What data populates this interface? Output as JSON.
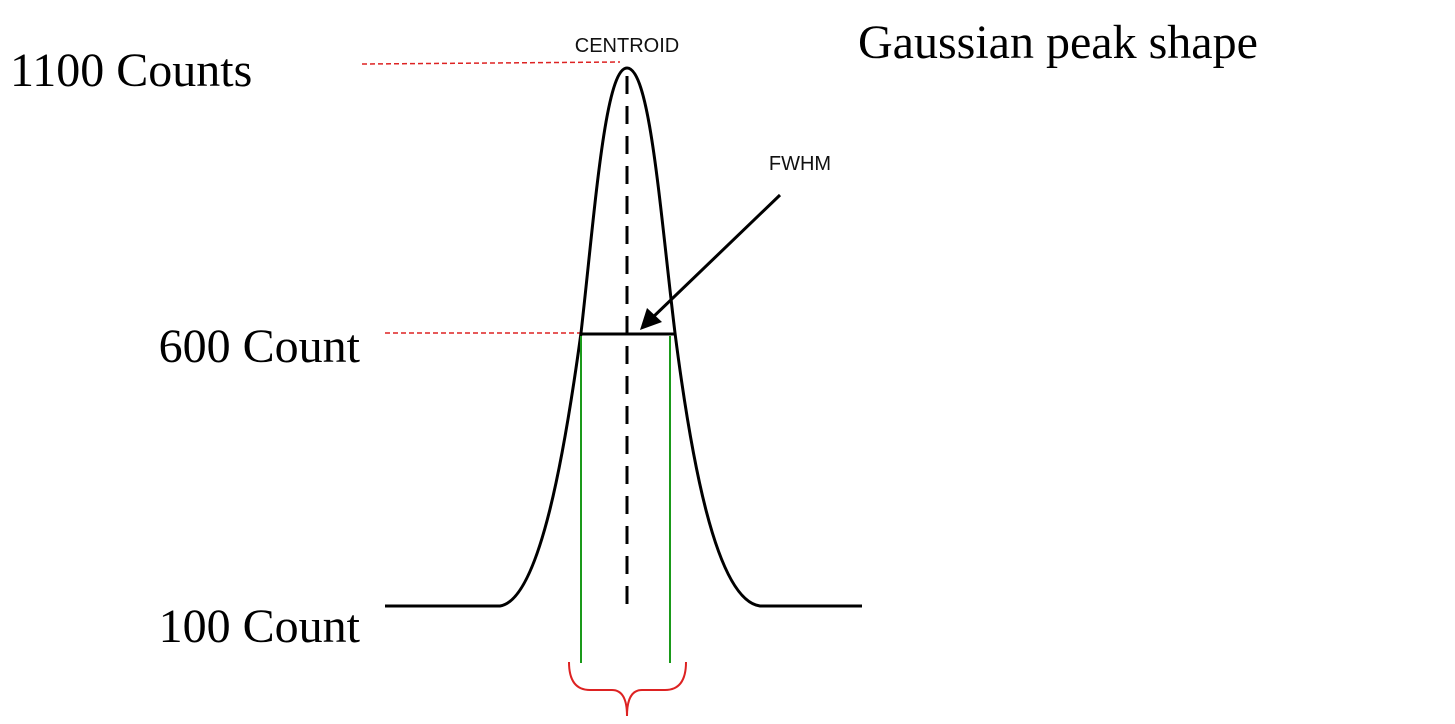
{
  "title": "Gaussian peak shape",
  "labels": {
    "peak": "1100 Counts",
    "half": "600 Count",
    "base": "100 Count"
  },
  "annotations": {
    "centroid": "CENTROID",
    "fwhm": "FWHM"
  }
}
